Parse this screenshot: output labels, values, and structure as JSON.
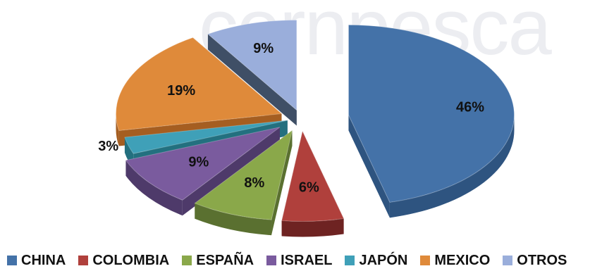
{
  "watermark_text": "cornpesca",
  "chart_data": {
    "type": "pie",
    "style": "3d-exploded",
    "title": "",
    "categories": [
      "CHINA",
      "COLOMBIA",
      "ESPAÑA",
      "ISRAEL",
      "JAPÓN",
      "MEXICO",
      "OTROS"
    ],
    "values": [
      46,
      6,
      8,
      9,
      3,
      19,
      9
    ],
    "labels": [
      "46%",
      "6%",
      "8%",
      "9%",
      "3%",
      "19%",
      "9%"
    ],
    "unit": "%",
    "legend_position": "bottom",
    "colors": [
      "#4472a8",
      "#b0403c",
      "#8aa84a",
      "#7a5b9e",
      "#3fa0b8",
      "#df8a3a",
      "#9aaedb"
    ],
    "side_colors": [
      "#2e5480",
      "#6e2322",
      "#5a7030",
      "#4e3a6a",
      "#23707f",
      "#a55e21",
      "#3f4f66"
    ]
  }
}
